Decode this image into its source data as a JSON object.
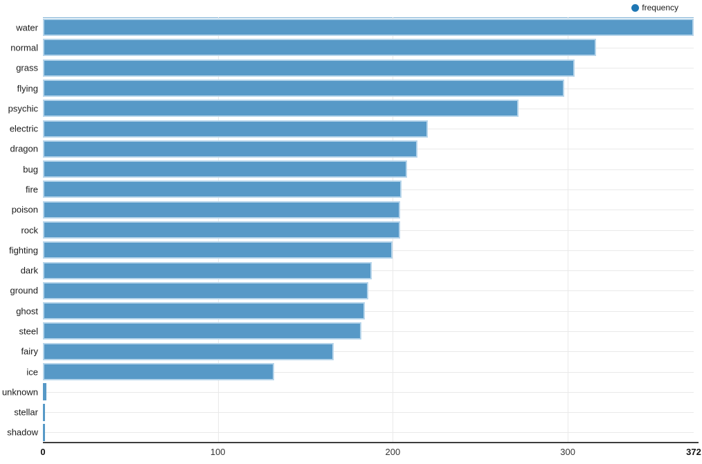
{
  "legend": {
    "label": "frequency"
  },
  "colors": {
    "bar_fill": "#5799c7",
    "bar_border": "#b5d4ea",
    "legend_dot": "#1f77b4",
    "axis_line": "#3c3c3c",
    "grid_line": "#e9e9e9",
    "top_border": "#7fb0d5",
    "label_color": "#1a1a1a"
  },
  "x_axis": {
    "ticks": [
      {
        "label": "0",
        "value": 0,
        "bold": true
      },
      {
        "label": "100",
        "value": 100,
        "bold": false
      },
      {
        "label": "200",
        "value": 200,
        "bold": false
      },
      {
        "label": "300",
        "value": 300,
        "bold": false
      },
      {
        "label": "372",
        "value": 372,
        "bold": true
      }
    ]
  },
  "chart_data": {
    "type": "bar",
    "orientation": "horizontal",
    "title": "",
    "legend_entries": [
      "frequency"
    ],
    "series_name": "frequency",
    "categories": [
      "water",
      "normal",
      "grass",
      "flying",
      "psychic",
      "electric",
      "dragon",
      "bug",
      "fire",
      "poison",
      "rock",
      "fighting",
      "dark",
      "ground",
      "ghost",
      "steel",
      "fairy",
      "ice",
      "unknown",
      "stellar",
      "shadow"
    ],
    "values": [
      372,
      316,
      304,
      298,
      272,
      220,
      214,
      208,
      205,
      204,
      204,
      200,
      188,
      186,
      184,
      182,
      166,
      132,
      2,
      1,
      1
    ],
    "xlabel": "",
    "ylabel": "",
    "xlim": [
      0,
      372
    ],
    "grid": true,
    "legend_position": "top-right"
  }
}
